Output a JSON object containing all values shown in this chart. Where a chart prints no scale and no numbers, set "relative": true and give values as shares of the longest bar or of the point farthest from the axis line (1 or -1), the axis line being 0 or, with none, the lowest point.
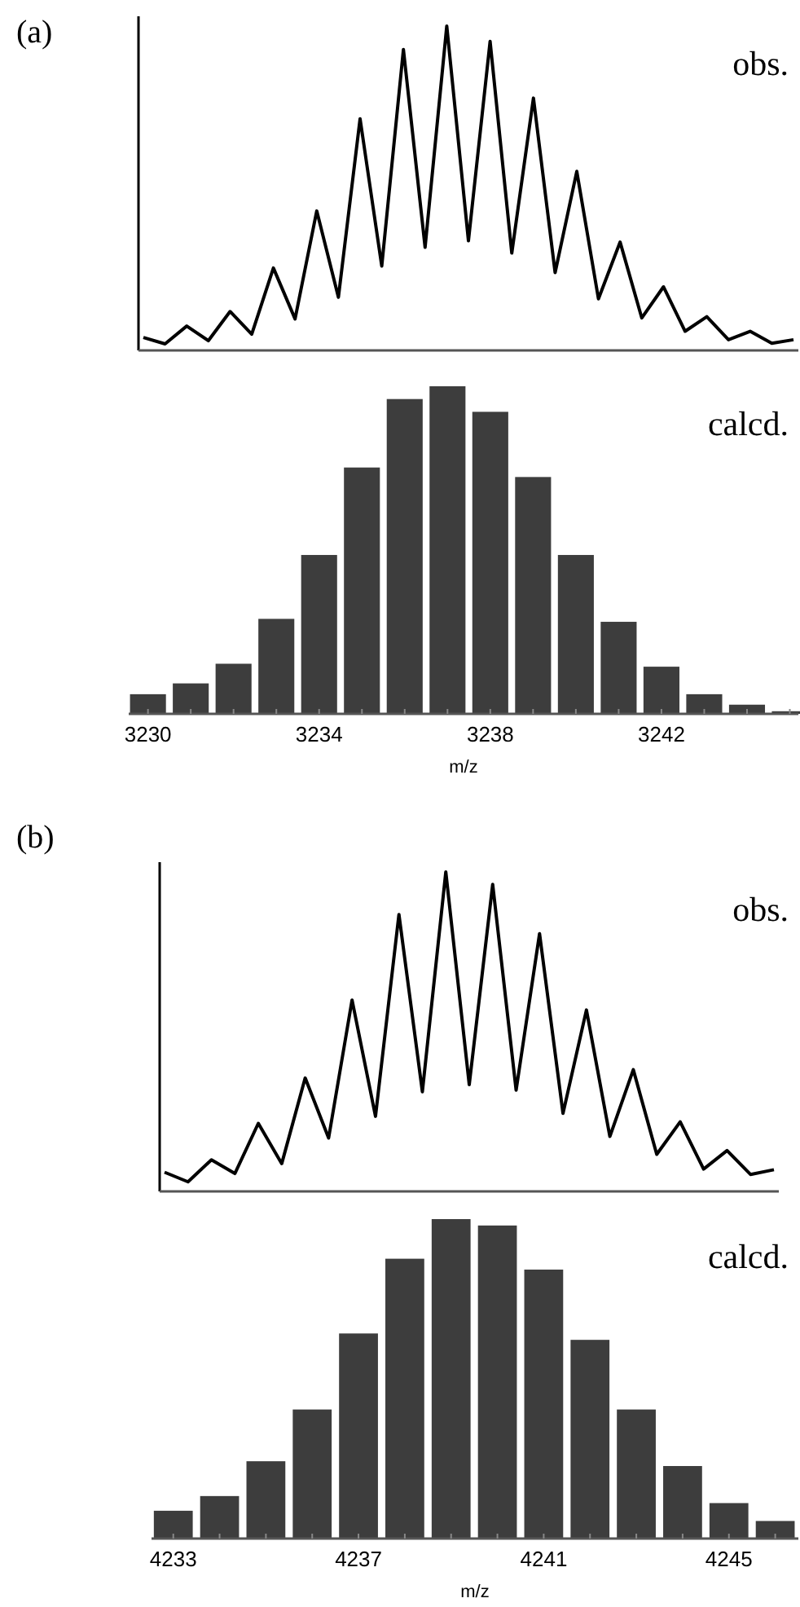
{
  "chart_data": [
    {
      "type": "line",
      "title": "(a)",
      "annotations": [
        "obs."
      ],
      "relative": true,
      "color": "#000000",
      "categories": [
        null,
        null,
        null,
        null,
        null,
        null,
        null,
        null,
        null,
        null,
        null,
        null,
        null,
        null,
        null,
        null,
        null,
        null,
        null,
        null,
        null,
        null,
        null,
        null,
        null,
        null,
        null,
        null,
        null,
        null,
        null
      ],
      "values": [
        0.04,
        0.02,
        0.075,
        0.03,
        0.12,
        0.05,
        0.254,
        0.097,
        0.43,
        0.164,
        0.714,
        0.26,
        0.928,
        0.318,
        1,
        0.338,
        0.953,
        0.3,
        0.778,
        0.24,
        0.552,
        0.159,
        0.334,
        0.1,
        0.196,
        0.059,
        0.104,
        0.033,
        0.059,
        0.022,
        0.033
      ]
    },
    {
      "type": "bar",
      "annotations": [
        "calcd."
      ],
      "xlabel": "m/z",
      "relative": true,
      "xlim": [
        3229.55,
        3245.2
      ],
      "color": "#3d3d3d",
      "xticks": [
        3230,
        {
          "value": 3231,
          "label": null
        },
        {
          "value": 3232,
          "label": null
        },
        {
          "value": 3233,
          "label": null
        },
        3234,
        {
          "value": 3235,
          "label": null
        },
        {
          "value": 3236,
          "label": null
        },
        {
          "value": 3237,
          "label": null
        },
        3238,
        {
          "value": 3239,
          "label": null
        },
        {
          "value": 3240,
          "label": null
        },
        {
          "value": 3241,
          "label": null
        },
        3242,
        {
          "value": 3243,
          "label": null
        },
        {
          "value": 3244,
          "label": null
        },
        {
          "value": 3245,
          "label": null
        }
      ],
      "x": [
        3230,
        3231,
        3232,
        3233,
        3234,
        3235,
        3236,
        3237,
        3238,
        3239,
        3240,
        3241,
        3242,
        3243,
        3244,
        3245
      ],
      "values": [
        0.06,
        0.093,
        0.153,
        0.29,
        0.485,
        0.752,
        0.961,
        1,
        0.922,
        0.723,
        0.485,
        0.281,
        0.144,
        0.06,
        0.028,
        0.008
      ]
    },
    {
      "type": "line",
      "title": "(b)",
      "annotations": [
        "obs."
      ],
      "relative": true,
      "color": "#000000",
      "categories": [
        null,
        null,
        null,
        null,
        null,
        null,
        null,
        null,
        null,
        null,
        null,
        null,
        null,
        null,
        null,
        null,
        null,
        null,
        null,
        null,
        null,
        null,
        null,
        null,
        null,
        null,
        null
      ],
      "values": [
        0.06,
        0.03,
        0.099,
        0.056,
        0.213,
        0.087,
        0.355,
        0.167,
        0.599,
        0.235,
        0.867,
        0.312,
        1,
        0.334,
        0.961,
        0.317,
        0.807,
        0.244,
        0.568,
        0.172,
        0.381,
        0.116,
        0.218,
        0.07,
        0.128,
        0.053,
        0.068
      ]
    },
    {
      "type": "bar",
      "annotations": [
        "calcd."
      ],
      "xlabel": "m/z",
      "relative": true,
      "xlim": [
        4232.53,
        4246.5
      ],
      "color": "#3d3d3d",
      "xticks": [
        4233,
        {
          "value": 4234,
          "label": null
        },
        {
          "value": 4235,
          "label": null
        },
        {
          "value": 4236,
          "label": null
        },
        4237,
        {
          "value": 4238,
          "label": null
        },
        {
          "value": 4239,
          "label": null
        },
        {
          "value": 4240,
          "label": null
        },
        4241,
        {
          "value": 4242,
          "label": null
        },
        {
          "value": 4243,
          "label": null
        },
        {
          "value": 4244,
          "label": null
        },
        4245,
        {
          "value": 4246,
          "label": null
        }
      ],
      "x": [
        4233,
        4234,
        4235,
        4236,
        4237,
        4238,
        4239,
        4240,
        4241,
        4242,
        4243,
        4244,
        4245,
        4246
      ],
      "values": [
        0.087,
        0.133,
        0.242,
        0.404,
        0.642,
        0.876,
        1,
        0.98,
        0.842,
        0.622,
        0.404,
        0.227,
        0.111,
        0.055
      ]
    }
  ]
}
